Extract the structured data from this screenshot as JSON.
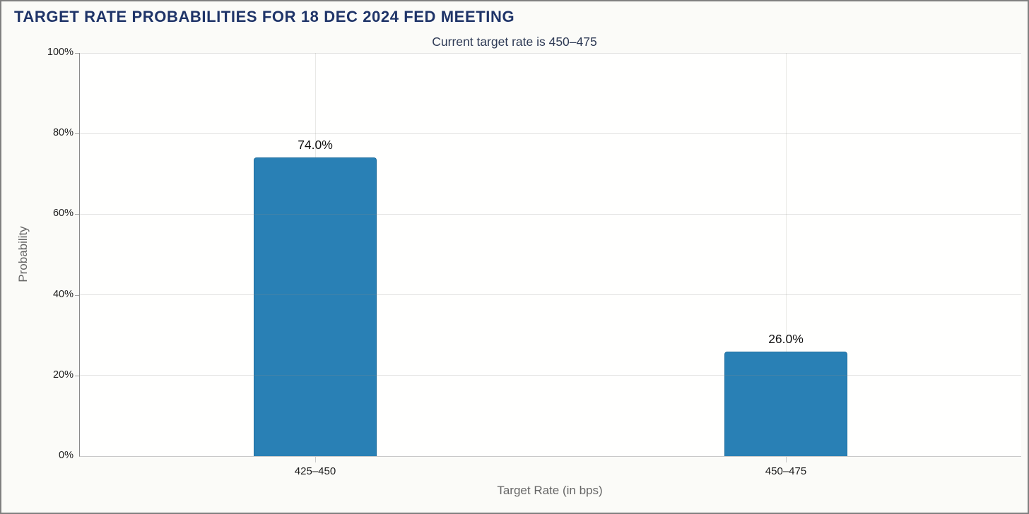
{
  "header": {
    "title": "TARGET RATE PROBABILITIES FOR 18 DEC 2024 FED MEETING",
    "subtitle": "Current target rate is 450–475"
  },
  "chart_data": {
    "type": "bar",
    "title": "TARGET RATE PROBABILITIES FOR 18 DEC 2024 FED MEETING",
    "subtitle": "Current target rate is 450–475",
    "categories": [
      "425–450",
      "450–475"
    ],
    "values": [
      74.0,
      26.0
    ],
    "value_labels": [
      "74.0%",
      "26.0%"
    ],
    "xlabel": "Target Rate (in bps)",
    "ylabel": "Probability",
    "ylim": [
      0,
      100
    ],
    "yticks": [
      "0%",
      "20%",
      "40%",
      "60%",
      "80%",
      "100%"
    ],
    "grid": true,
    "legend": "none"
  },
  "colors": {
    "title": "#1f3468",
    "subtitle": "#2e3a55",
    "bar": "#2980b5",
    "bar_border": "#2170a0",
    "grid": "#e9e9e6",
    "grid_h": "rgba(140,140,140,0.25)",
    "axis_y": "#8a8a8a",
    "axis_x": "#c9c9c9",
    "tick_label": "#1d1d1d",
    "axis_title": "#666666",
    "background": "#fbfbf8",
    "plot_bg": "#fffffe",
    "border": "#808080"
  }
}
